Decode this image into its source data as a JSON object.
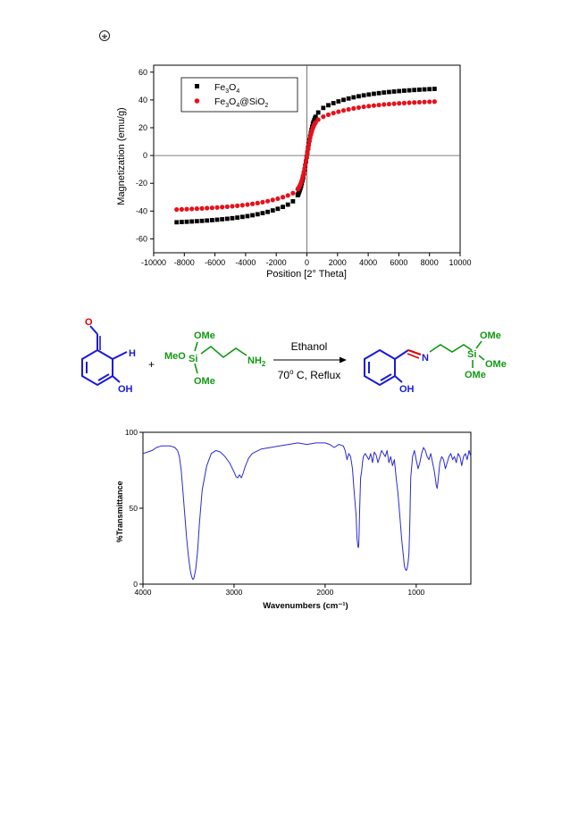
{
  "chart_data": [
    {
      "type": "scatter",
      "ylabel": "Magnetization (emu/g)",
      "xlabel": "Position [2° Theta]",
      "xlim": [
        -10000,
        10000
      ],
      "ylim": [
        -70,
        65
      ],
      "xticks": [
        -10000,
        -8000,
        -6000,
        -4000,
        -2000,
        0,
        2000,
        4000,
        6000,
        8000,
        10000
      ],
      "yticks": [
        -60,
        -40,
        -20,
        0,
        20,
        40,
        60
      ],
      "grid": false,
      "zero_lines": true,
      "legend_position": "top-left",
      "series": [
        {
          "name": "Fe3O4",
          "marker": "square",
          "color": "#000000",
          "ms": 52.5,
          "h0": 450
        },
        {
          "name": "Fe3O4@SiO2",
          "marker": "circle",
          "color": "#e8101a",
          "ms": 42.5,
          "h0": 380
        }
      ],
      "x_range": [
        -8500,
        8500
      ],
      "x_step": 330
    },
    {
      "type": "line",
      "ylabel": "%Transmittance",
      "xlabel": "Wavenumbers (cm⁻¹)",
      "xlim": [
        4000,
        400
      ],
      "ylim": [
        0,
        100
      ],
      "xticks": [
        4000,
        3000,
        2000,
        1000
      ],
      "yticks": [
        0,
        50,
        100
      ],
      "color": "#2a2ad0",
      "x": [
        4000,
        3950,
        3900,
        3850,
        3800,
        3760,
        3700,
        3650,
        3620,
        3600,
        3580,
        3560,
        3540,
        3520,
        3500,
        3480,
        3470,
        3460,
        3450,
        3440,
        3420,
        3400,
        3380,
        3350,
        3300,
        3250,
        3200,
        3150,
        3100,
        3050,
        3000,
        2980,
        2960,
        2940,
        2920,
        2900,
        2880,
        2860,
        2840,
        2800,
        2700,
        2600,
        2500,
        2400,
        2300,
        2200,
        2100,
        2000,
        1950,
        1900,
        1850,
        1800,
        1780,
        1760,
        1740,
        1720,
        1700,
        1680,
        1660,
        1650,
        1640,
        1635,
        1630,
        1620,
        1610,
        1600,
        1590,
        1580,
        1560,
        1540,
        1520,
        1500,
        1480,
        1460,
        1440,
        1420,
        1400,
        1380,
        1360,
        1340,
        1320,
        1300,
        1280,
        1260,
        1240,
        1220,
        1200,
        1180,
        1160,
        1140,
        1130,
        1120,
        1110,
        1100,
        1090,
        1080,
        1070,
        1060,
        1040,
        1020,
        1000,
        980,
        960,
        940,
        920,
        900,
        880,
        860,
        840,
        820,
        800,
        790,
        780,
        770,
        760,
        750,
        740,
        720,
        700,
        680,
        660,
        640,
        620,
        600,
        580,
        560,
        540,
        520,
        500,
        480,
        460,
        440,
        420,
        400
      ],
      "y": [
        86,
        87,
        88,
        90,
        91,
        91,
        91,
        90,
        88,
        84,
        75,
        60,
        45,
        30,
        18,
        9,
        6,
        4,
        3,
        4,
        10,
        22,
        40,
        62,
        78,
        86,
        88,
        87,
        84,
        80,
        74,
        71,
        70,
        72,
        70,
        73,
        77,
        80,
        83,
        86,
        89,
        90,
        91,
        92,
        93,
        92,
        93,
        93,
        92,
        90,
        92,
        91,
        88,
        82,
        86,
        84,
        76,
        60,
        45,
        30,
        25,
        24,
        26,
        50,
        70,
        74,
        80,
        84,
        86,
        84,
        82,
        86,
        80,
        87,
        85,
        80,
        84,
        88,
        86,
        84,
        88,
        80,
        84,
        78,
        82,
        70,
        60,
        45,
        30,
        18,
        12,
        10,
        9,
        10,
        14,
        20,
        40,
        70,
        84,
        88,
        82,
        76,
        80,
        86,
        90,
        88,
        84,
        82,
        86,
        80,
        74,
        70,
        65,
        63,
        68,
        74,
        80,
        84,
        82,
        76,
        80,
        84,
        86,
        82,
        84,
        80,
        86,
        84,
        78,
        84,
        86,
        82,
        88,
        84
      ]
    }
  ]
}
